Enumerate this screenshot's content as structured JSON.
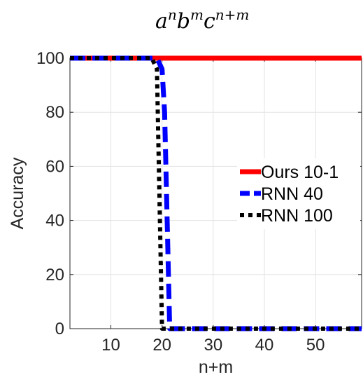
{
  "chart_data": {
    "type": "line",
    "title": {
      "a": "a",
      "n1": "n",
      "b": "b",
      "m": "m",
      "c": "c",
      "nm": "n+m"
    },
    "xlabel": "n+m",
    "ylabel": "Accuracy",
    "xlim": [
      2,
      59
    ],
    "ylim": [
      0,
      100
    ],
    "xticks": [
      10,
      20,
      30,
      40,
      50
    ],
    "yticks": [
      0,
      20,
      40,
      60,
      80,
      100
    ],
    "grid": true,
    "legend_position": "right",
    "series": [
      {
        "name": "Ours 10-1",
        "color": "#ff0000",
        "style": "solid",
        "x": [
          2,
          59
        ],
        "y": [
          100,
          100
        ]
      },
      {
        "name": "RNN 40",
        "color": "#0000ff",
        "style": "dashed",
        "x": [
          2,
          19,
          20,
          20.5,
          21,
          21.5,
          59
        ],
        "y": [
          100,
          100,
          96,
          80,
          40,
          0,
          0
        ]
      },
      {
        "name": "RNN 100",
        "color": "#000000",
        "style": "dotted",
        "x": [
          2,
          18,
          19,
          20,
          59
        ],
        "y": [
          100,
          100,
          96,
          0,
          0
        ]
      }
    ]
  }
}
